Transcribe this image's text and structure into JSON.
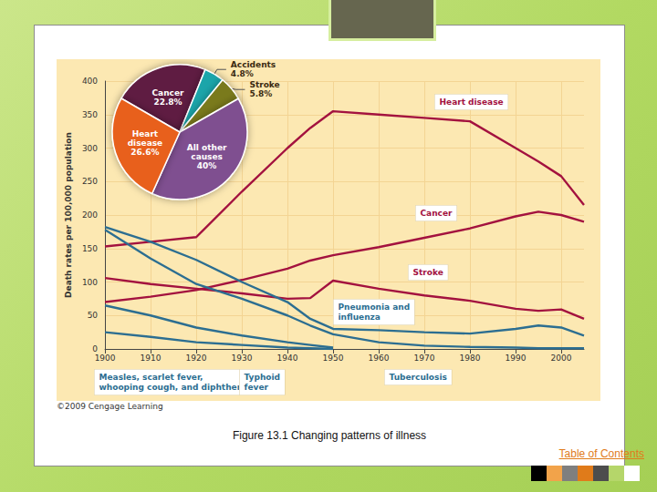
{
  "chart_data": [
    {
      "type": "line",
      "y_label": "Death rates per 100,000 population",
      "x": [
        1900,
        1910,
        1920,
        1930,
        1940,
        1945,
        1950,
        1960,
        1970,
        1980,
        1990,
        1995,
        2000,
        2005
      ],
      "xlim": [
        1900,
        2005
      ],
      "xticks": [
        1900,
        1910,
        1920,
        1930,
        1940,
        1950,
        1960,
        1970,
        1980,
        1990,
        2000
      ],
      "ylim": [
        0,
        400
      ],
      "yticks": [
        0,
        50,
        100,
        150,
        200,
        250,
        300,
        350,
        400
      ],
      "grid": true,
      "series": [
        {
          "name": "Heart disease",
          "color": "#a3123f",
          "values": [
            153,
            160,
            167,
            235,
            300,
            330,
            355,
            350,
            345,
            340,
            300,
            280,
            258,
            215
          ]
        },
        {
          "name": "Cancer",
          "color": "#a3123f",
          "values": [
            70,
            78,
            88,
            103,
            120,
            132,
            140,
            152,
            166,
            180,
            198,
            205,
            200,
            190
          ]
        },
        {
          "name": "Stroke",
          "color": "#a3123f",
          "values": [
            106,
            97,
            90,
            83,
            75,
            76,
            102,
            90,
            80,
            72,
            60,
            57,
            59,
            45
          ]
        },
        {
          "name": "Pneumonia and\ninfluenza",
          "color": "#2c6e91",
          "values": [
            182,
            160,
            133,
            100,
            70,
            45,
            30,
            28,
            25,
            23,
            30,
            35,
            32,
            20
          ]
        },
        {
          "name": "Tuberculosis",
          "color": "#2c6e91",
          "values": [
            178,
            135,
            97,
            75,
            50,
            35,
            22,
            10,
            5,
            3,
            2,
            1,
            1,
            1
          ]
        },
        {
          "name": "Measles, scarlet fever,\nwhooping cough, and diphtheria",
          "color": "#2c6e91",
          "values": [
            65,
            50,
            32,
            20,
            10,
            6,
            2,
            null,
            null,
            null,
            null,
            null,
            null,
            null
          ]
        },
        {
          "name": "Typhoid\nfever",
          "color": "#2c6e91",
          "values": [
            25,
            18,
            10,
            6,
            2,
            1,
            0,
            null,
            null,
            null,
            null,
            null,
            null,
            null
          ]
        }
      ]
    },
    {
      "type": "pie",
      "categories": [
        "Cancer",
        "Accidents",
        "Stroke",
        "All other\ncauses",
        "Heart\ndisease"
      ],
      "values": [
        22.8,
        4.8,
        5.8,
        40,
        26.6
      ],
      "value_labels": [
        "22.8%",
        "4.8%",
        "5.8%",
        "40%",
        "26.6%"
      ],
      "colors": [
        "#5e1a42",
        "#1ba5aa",
        "#7a7a1c",
        "#7f4f90",
        "#e8601c"
      ],
      "data_labels": true
    }
  ],
  "page": {
    "caption": "Figure 13.1 Changing patterns of illness",
    "credit": "©2009 Cengage Learning",
    "link": "Table of Contents"
  }
}
